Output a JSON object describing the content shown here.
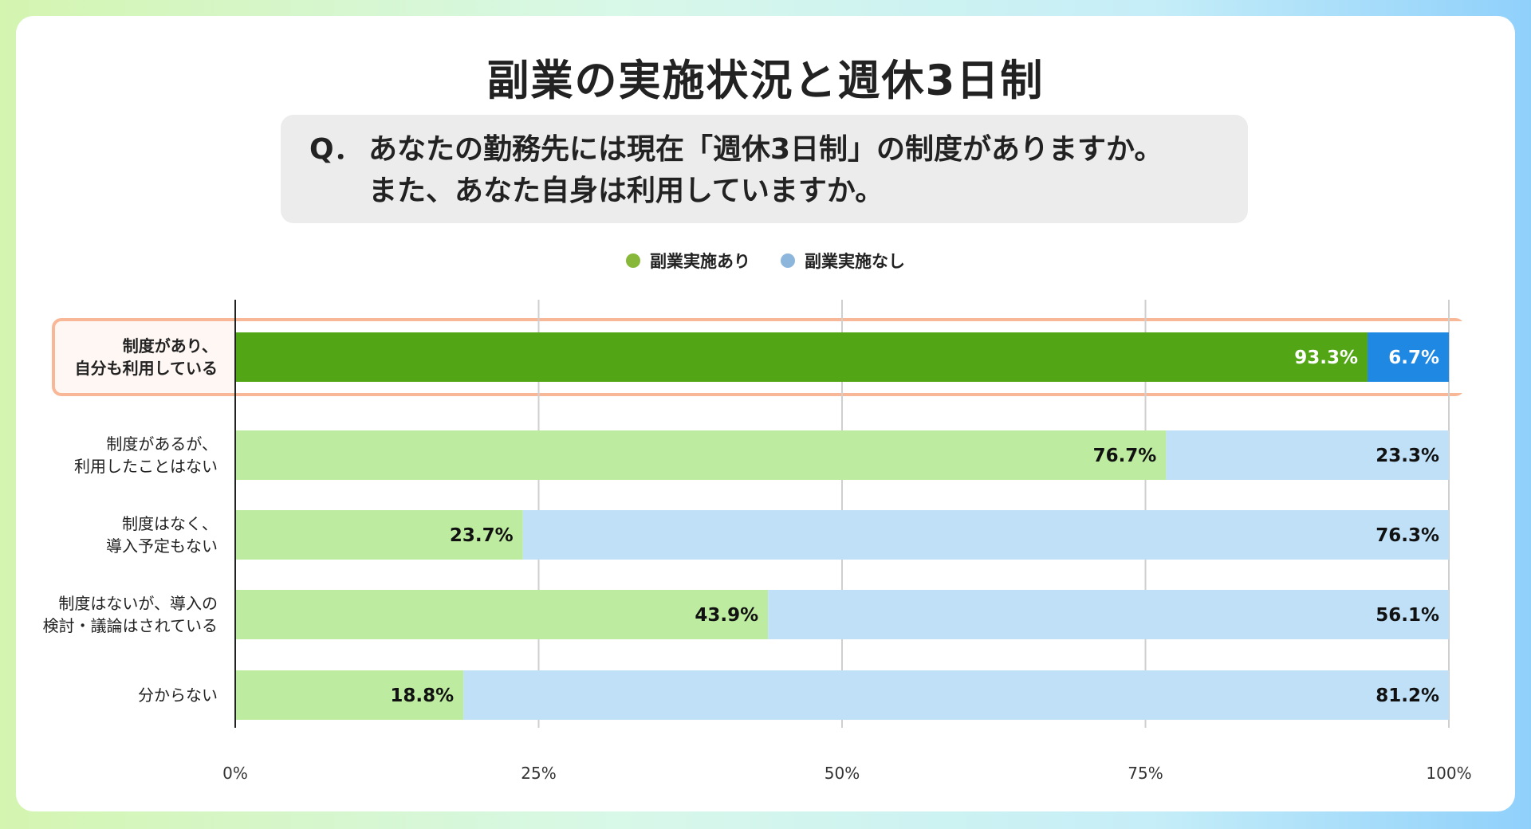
{
  "title": "副業の実施状況と週休3日制",
  "question": {
    "mark": "Q．",
    "line1": "あなたの勤務先には現在「週休3日制」の制度がありますか。",
    "line2": "また、あなた自身は利用していますか。"
  },
  "colors": {
    "legend_yes": "#88b83a",
    "legend_no": "#8db6dc",
    "highlight_yes": "#52a515",
    "highlight_no": "#1f88e2",
    "yes": "#bdeba0",
    "no": "#bfe0f7",
    "highlight_border": "#f8b898"
  },
  "chart_data": {
    "type": "bar",
    "orientation": "horizontal",
    "stacked": true,
    "categories": [
      [
        "制度があり、",
        "自分も利用している"
      ],
      [
        "制度があるが、",
        "利用したことはない"
      ],
      [
        "制度はなく、",
        "導入予定もない"
      ],
      [
        "制度はないが、導入の",
        "検討・議論はされている"
      ],
      [
        "分からない"
      ]
    ],
    "series": [
      {
        "name": "副業実施あり",
        "values": [
          93.3,
          76.7,
          23.7,
          43.9,
          18.8
        ]
      },
      {
        "name": "副業実施なし",
        "values": [
          6.7,
          23.3,
          76.3,
          56.1,
          81.2
        ]
      }
    ],
    "value_labels": [
      [
        "93.3%",
        "76.7%",
        "23.7%",
        "43.9%",
        "18.8%"
      ],
      [
        "6.7%",
        "23.3%",
        "76.3%",
        "56.1%",
        "81.2%"
      ]
    ],
    "xlim": [
      0,
      100
    ],
    "ticks": [
      "0%",
      "25%",
      "50%",
      "75%",
      "100%"
    ],
    "grid": true,
    "legend": "top-center",
    "highlighted_category": 0
  }
}
